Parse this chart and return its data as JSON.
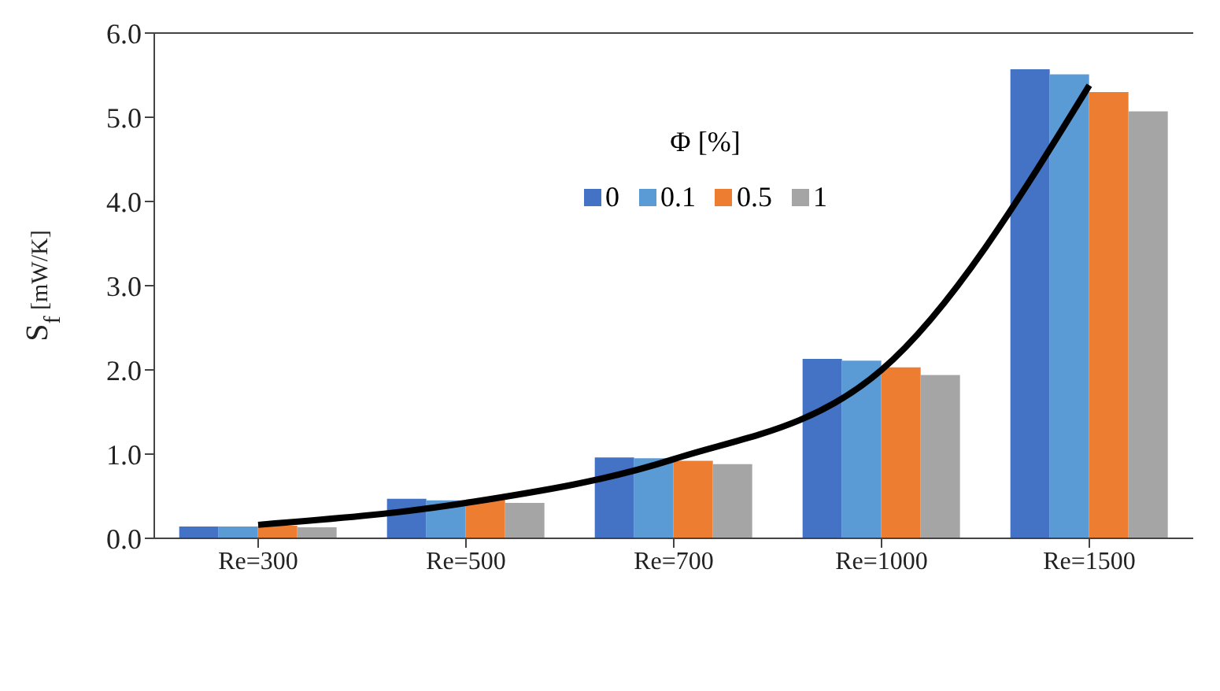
{
  "chart_data": {
    "type": "bar",
    "ylabel": "S$_{f}$ [mW/K]",
    "legend_title": "Φ [%]",
    "categories": [
      "Re=300",
      "Re=500",
      "Re=700",
      "Re=1000",
      "Re=1500"
    ],
    "series": [
      {
        "name": "0",
        "color": "#4472c4",
        "values": [
          0.14,
          0.47,
          0.96,
          2.13,
          5.57
        ]
      },
      {
        "name": "0.1",
        "color": "#5b9bd5",
        "values": [
          0.14,
          0.45,
          0.95,
          2.11,
          5.51
        ]
      },
      {
        "name": "0.5",
        "color": "#ed7d31",
        "values": [
          0.15,
          0.46,
          0.92,
          2.03,
          5.3
        ]
      },
      {
        "name": "1",
        "color": "#a5a5a5",
        "values": [
          0.13,
          0.42,
          0.88,
          1.94,
          5.07
        ]
      },
      {
        "type": "line",
        "color": "#000000",
        "x": [
          "Re=300",
          "Re=500",
          "Re=700",
          "Re=1000",
          "Re=1500"
        ],
        "values": [
          0.16,
          0.42,
          0.94,
          2.0,
          5.38
        ]
      }
    ],
    "ylim": [
      0,
      6
    ],
    "yticks": [
      {
        "value": 0,
        "label": "0.0"
      },
      {
        "value": 1,
        "label": "1.0"
      },
      {
        "value": 2,
        "label": "2.0"
      },
      {
        "value": 3,
        "label": "3.0"
      },
      {
        "value": 4,
        "label": "4.0"
      },
      {
        "value": 5,
        "label": "5.0"
      },
      {
        "value": 6,
        "label": "6.0"
      }
    ],
    "legend": "top",
    "marker": "none",
    "line_style": "solid"
  }
}
